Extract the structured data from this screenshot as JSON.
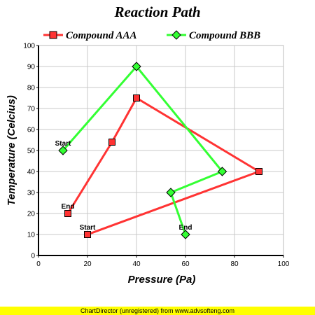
{
  "chart_data": {
    "type": "line",
    "title": "Reaction Path",
    "xlabel": "Pressure (Pa)",
    "ylabel": "Temperature (Celcius)",
    "xlim": [
      0,
      100
    ],
    "ylim": [
      0,
      100
    ],
    "x_ticks": [
      0,
      20,
      40,
      60,
      80,
      100
    ],
    "y_ticks": [
      0,
      10,
      20,
      30,
      40,
      50,
      60,
      70,
      80,
      90,
      100
    ],
    "grid": true,
    "legend_position": "top",
    "series": [
      {
        "name": "Compound AAA",
        "color": "#ff3333",
        "marker": "square",
        "points": [
          [
            20,
            10
          ],
          [
            90,
            40
          ],
          [
            40,
            75
          ],
          [
            30,
            54
          ],
          [
            12,
            20
          ]
        ],
        "start_label": "Start",
        "end_label": "End"
      },
      {
        "name": "Compound BBB",
        "color": "#33ff33",
        "marker": "diamond",
        "points": [
          [
            10,
            50
          ],
          [
            40,
            90
          ],
          [
            75,
            40
          ],
          [
            54,
            30
          ],
          [
            60,
            10
          ]
        ],
        "start_label": "Start",
        "end_label": "End"
      }
    ]
  },
  "footer": "ChartDirector (unregistered) from www.advsofteng.com"
}
